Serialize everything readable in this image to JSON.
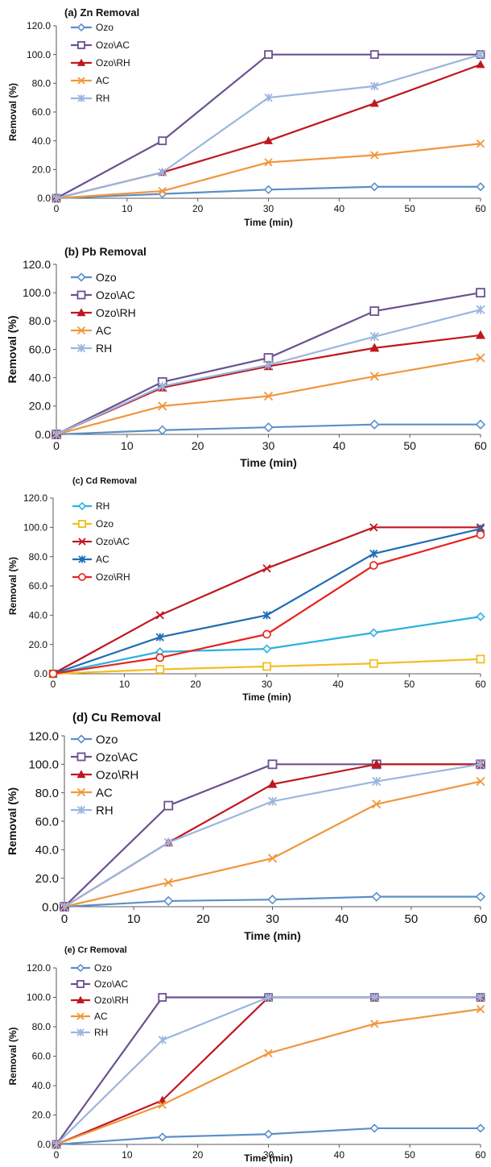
{
  "chart_data": [
    {
      "type": "line",
      "title": "(a) Zn Removal",
      "xlabel": "Time (min)",
      "ylabel": "Removal (%)",
      "xlim": [
        0,
        60
      ],
      "ylim": [
        0,
        120
      ],
      "x_ticks": [
        "0",
        "10",
        "20",
        "30",
        "40",
        "50",
        "60"
      ],
      "y_ticks": [
        "0.0",
        "20.0",
        "40.0",
        "60.0",
        "80.0",
        "100.0",
        "120.0"
      ],
      "grid": false,
      "legend": "top-left",
      "series": [
        {
          "name": "Ozo",
          "color": "#5B8FC8",
          "marker": "diamond",
          "x": [
            0,
            15,
            30,
            45,
            60
          ],
          "values": [
            0,
            3,
            6,
            8,
            8
          ]
        },
        {
          "name": "Ozo\\AC",
          "color": "#6A5190",
          "marker": "square",
          "x": [
            0,
            15,
            30,
            45,
            60
          ],
          "values": [
            0,
            40,
            100,
            100,
            100
          ]
        },
        {
          "name": "Ozo\\RH",
          "color": "#C0171F",
          "marker": "triangle",
          "x": [
            0,
            15,
            30,
            45,
            60
          ],
          "values": [
            0,
            18,
            40,
            66,
            93
          ]
        },
        {
          "name": "AC",
          "color": "#F0963C",
          "marker": "x",
          "x": [
            0,
            15,
            30,
            45,
            60
          ],
          "values": [
            0,
            5,
            25,
            30,
            38
          ]
        },
        {
          "name": "RH",
          "color": "#9BB6DE",
          "marker": "star",
          "x": [
            0,
            15,
            30,
            45,
            60
          ],
          "values": [
            0,
            18,
            70,
            78,
            100
          ]
        }
      ]
    },
    {
      "type": "line",
      "title": "(b) Pb Removal",
      "xlabel": "Time (min)",
      "ylabel": "Removal (%)",
      "xlim": [
        0,
        60
      ],
      "ylim": [
        0,
        120
      ],
      "x_ticks": [
        "0",
        "10",
        "20",
        "30",
        "40",
        "50",
        "60"
      ],
      "y_ticks": [
        "0.0",
        "20.0",
        "40.0",
        "60.0",
        "80.0",
        "100.0",
        "120.0"
      ],
      "grid": false,
      "legend": "top-left",
      "series": [
        {
          "name": "Ozo",
          "color": "#5B8FC8",
          "marker": "diamond",
          "x": [
            0,
            15,
            30,
            45,
            60
          ],
          "values": [
            0,
            3,
            5,
            7,
            7
          ]
        },
        {
          "name": "Ozo\\AC",
          "color": "#6A5190",
          "marker": "square",
          "x": [
            0,
            15,
            30,
            45,
            60
          ],
          "values": [
            0,
            37,
            54,
            87,
            100
          ]
        },
        {
          "name": "Ozo\\RH",
          "color": "#C0171F",
          "marker": "triangle",
          "x": [
            0,
            15,
            30,
            45,
            60
          ],
          "values": [
            0,
            33,
            48,
            61,
            70
          ]
        },
        {
          "name": "AC",
          "color": "#F0963C",
          "marker": "x",
          "x": [
            0,
            15,
            30,
            45,
            60
          ],
          "values": [
            0,
            20,
            27,
            41,
            54
          ]
        },
        {
          "name": "RH",
          "color": "#9BB6DE",
          "marker": "star",
          "x": [
            0,
            15,
            30,
            45,
            60
          ],
          "values": [
            0,
            34,
            49,
            69,
            88
          ]
        }
      ]
    },
    {
      "type": "line",
      "title": "(c) Cd Removal",
      "xlabel": "Time (min)",
      "ylabel": "Removal (%)",
      "xlim": [
        0,
        60
      ],
      "ylim": [
        0,
        120
      ],
      "x_ticks": [
        "0",
        "10",
        "20",
        "30",
        "40",
        "50",
        "60"
      ],
      "y_ticks": [
        "0.0",
        "20.0",
        "40.0",
        "60.0",
        "80.0",
        "100.0",
        "120.0"
      ],
      "grid": false,
      "legend": "top-left",
      "series": [
        {
          "name": "RH",
          "color": "#2BB2E0",
          "marker": "diamond",
          "x": [
            0,
            15,
            30,
            45,
            60
          ],
          "values": [
            0,
            15,
            17,
            28,
            39
          ]
        },
        {
          "name": "Ozo",
          "color": "#F2BE1E",
          "marker": "square",
          "x": [
            0,
            15,
            30,
            45,
            60
          ],
          "values": [
            0,
            3,
            5,
            7,
            10
          ]
        },
        {
          "name": "Ozo\\AC",
          "color": "#C0171F",
          "marker": "x",
          "x": [
            0,
            15,
            30,
            45,
            60
          ],
          "values": [
            0,
            40,
            72,
            100,
            100
          ]
        },
        {
          "name": "AC",
          "color": "#1F6CB4",
          "marker": "star",
          "x": [
            0,
            15,
            30,
            45,
            60
          ],
          "values": [
            0,
            25,
            40,
            82,
            99
          ]
        },
        {
          "name": "Ozo\\RH",
          "color": "#E8211E",
          "marker": "circle",
          "x": [
            0,
            15,
            30,
            45,
            60
          ],
          "values": [
            0,
            11,
            27,
            74,
            95
          ]
        }
      ]
    },
    {
      "type": "line",
      "title": "(d) Cu Removal",
      "xlabel": "Time (min)",
      "ylabel": "Removal (%)",
      "xlim": [
        0,
        60
      ],
      "ylim": [
        0,
        120
      ],
      "x_ticks": [
        "0",
        "10",
        "20",
        "30",
        "40",
        "50",
        "60"
      ],
      "y_ticks": [
        "0.0",
        "20.0",
        "40.0",
        "60.0",
        "80.0",
        "100.0",
        "120.0"
      ],
      "grid": false,
      "legend": "top-left",
      "series": [
        {
          "name": "Ozo",
          "color": "#5B8FC8",
          "marker": "diamond",
          "x": [
            0,
            15,
            30,
            45,
            60
          ],
          "values": [
            0,
            4,
            5,
            7,
            7
          ]
        },
        {
          "name": "Ozo\\AC",
          "color": "#6A5190",
          "marker": "square",
          "x": [
            0,
            15,
            30,
            45,
            60
          ],
          "values": [
            0,
            71,
            100,
            100,
            100
          ]
        },
        {
          "name": "Ozo\\RH",
          "color": "#C0171F",
          "marker": "triangle",
          "x": [
            0,
            15,
            30,
            45,
            60
          ],
          "values": [
            0,
            45,
            86,
            100,
            100
          ]
        },
        {
          "name": "AC",
          "color": "#F0963C",
          "marker": "x",
          "x": [
            0,
            15,
            30,
            45,
            60
          ],
          "values": [
            0,
            17,
            34,
            72,
            88
          ]
        },
        {
          "name": "RH",
          "color": "#9BB6DE",
          "marker": "star",
          "x": [
            0,
            15,
            30,
            45,
            60
          ],
          "values": [
            0,
            45,
            74,
            88,
            100
          ]
        }
      ]
    },
    {
      "type": "line",
      "title": "(e) Cr Removal",
      "xlabel": "Time (min)",
      "ylabel": "Removal (%)",
      "xlim": [
        0,
        60
      ],
      "ylim": [
        0,
        120
      ],
      "x_ticks": [
        "0",
        "10",
        "20",
        "30",
        "40",
        "50",
        "60"
      ],
      "y_ticks": [
        "0.0",
        "20.0",
        "40.0",
        "60.0",
        "80.0",
        "100.0",
        "120.0"
      ],
      "grid": false,
      "legend": "top-left",
      "series": [
        {
          "name": "Ozo",
          "color": "#5B8FC8",
          "marker": "diamond",
          "x": [
            0,
            15,
            30,
            45,
            60
          ],
          "values": [
            0,
            5,
            7,
            11,
            11
          ]
        },
        {
          "name": "Ozo\\AC",
          "color": "#6A5190",
          "marker": "square",
          "x": [
            0,
            15,
            30,
            45,
            60
          ],
          "values": [
            0,
            100,
            100,
            100,
            100
          ]
        },
        {
          "name": "Ozo\\RH",
          "color": "#C0171F",
          "marker": "triangle",
          "x": [
            0,
            15,
            30,
            45,
            60
          ],
          "values": [
            0,
            30,
            100,
            100,
            100
          ]
        },
        {
          "name": "AC",
          "color": "#F0963C",
          "marker": "x",
          "x": [
            0,
            15,
            30,
            45,
            60
          ],
          "values": [
            0,
            27,
            62,
            82,
            92
          ]
        },
        {
          "name": "RH",
          "color": "#9BB6DE",
          "marker": "star",
          "x": [
            0,
            15,
            30,
            45,
            60
          ],
          "values": [
            0,
            71,
            100,
            100,
            100
          ]
        }
      ]
    }
  ]
}
